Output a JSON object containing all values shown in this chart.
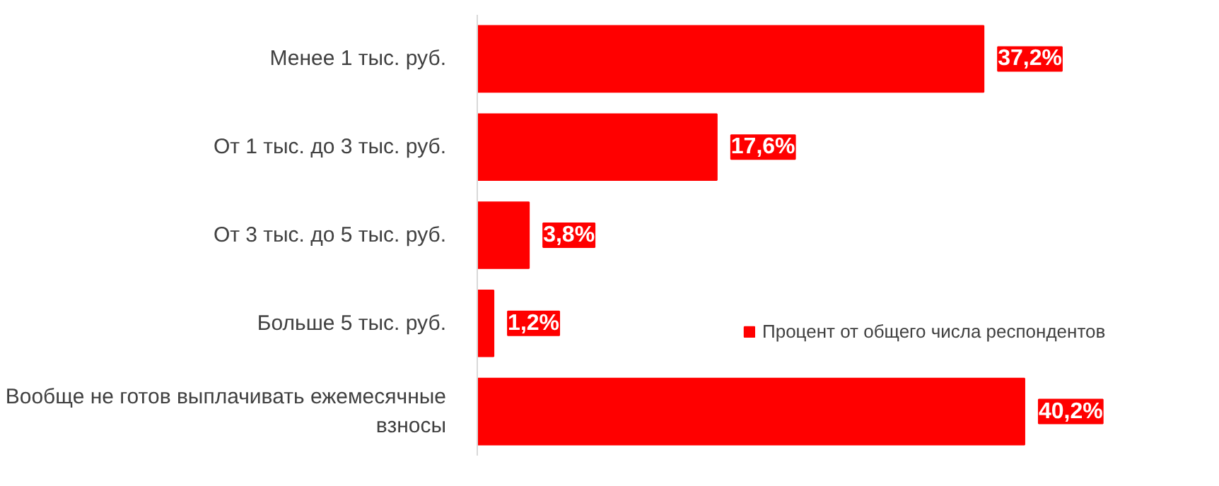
{
  "chart_data": {
    "type": "bar",
    "orientation": "horizontal",
    "categories": [
      "Менее 1 тыс. руб.",
      "От 1 тыс. до 3 тыс. руб.",
      "От 3 тыс. до 5 тыс. руб.",
      "Больше 5 тыс. руб.",
      "Вообще не готов выплачивать ежемесячные взносы"
    ],
    "series": [
      {
        "name": "Процент от общего числа респондентов",
        "color": "#ff0000",
        "values": [
          37.2,
          17.6,
          3.8,
          1.2,
          40.2
        ],
        "value_labels": [
          "37,2%",
          "17,6%",
          "3,8%",
          "1,2%",
          "40,2%"
        ]
      }
    ],
    "legend": "right",
    "grid": false
  }
}
